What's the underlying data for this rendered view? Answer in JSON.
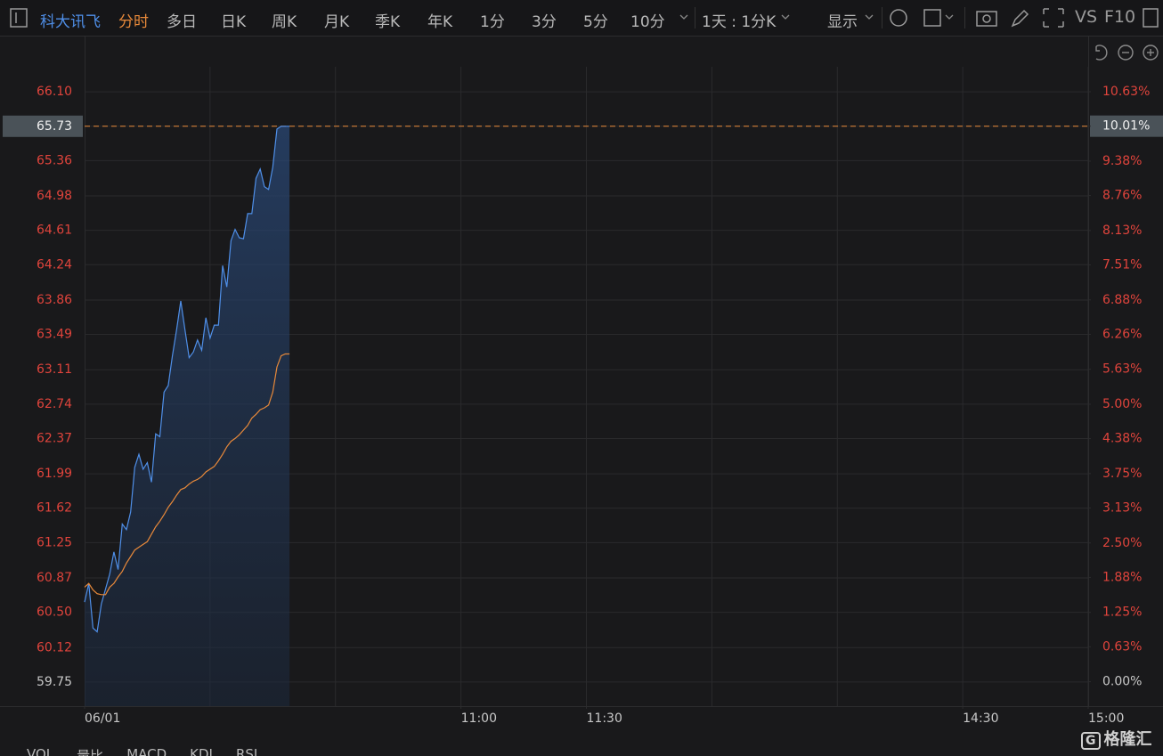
{
  "toolbar": {
    "stock": "科大讯飞",
    "items": [
      "分时",
      "多日",
      "日K",
      "周K",
      "月K",
      "季K",
      "年K",
      "1分",
      "3分",
      "5分",
      "10分"
    ],
    "period": "1天 : 1分K",
    "display": "显示",
    "vs": "VS",
    "f10": "F10"
  },
  "chart_data": {
    "type": "line",
    "x": [
      0,
      1,
      2,
      3,
      4,
      5,
      6,
      7,
      8,
      9,
      10,
      11,
      12,
      13,
      14,
      15,
      16,
      17,
      18,
      19,
      20,
      21,
      22,
      23,
      24,
      25,
      26,
      27,
      28,
      29,
      30,
      31,
      32,
      33,
      34,
      35,
      36,
      37,
      38,
      39,
      40,
      41,
      42,
      43,
      44,
      45,
      46,
      47,
      48,
      49
    ],
    "series": [
      {
        "name": "price",
        "color": "#4f8fe8",
        "area": true,
        "values": [
          60.61,
          60.81,
          60.33,
          60.29,
          60.59,
          60.75,
          60.91,
          61.15,
          60.96,
          61.45,
          61.39,
          61.58,
          62.06,
          62.2,
          62.04,
          62.11,
          61.9,
          62.42,
          62.39,
          62.87,
          62.94,
          63.26,
          63.54,
          63.85,
          63.54,
          63.24,
          63.3,
          63.43,
          63.32,
          63.67,
          63.45,
          63.59,
          63.59,
          64.23,
          64.0,
          64.5,
          64.62,
          64.53,
          64.52,
          64.79,
          64.79,
          65.17,
          65.27,
          65.08,
          65.05,
          65.29,
          65.7,
          65.73,
          65.73,
          65.73
        ]
      },
      {
        "name": "average",
        "color": "#e8893a",
        "values": [
          60.77,
          60.81,
          60.74,
          60.7,
          60.69,
          60.69,
          60.77,
          60.81,
          60.88,
          60.94,
          61.03,
          61.1,
          61.17,
          61.2,
          61.23,
          61.26,
          61.34,
          61.42,
          61.48,
          61.55,
          61.63,
          61.69,
          61.76,
          61.82,
          61.84,
          61.88,
          61.91,
          61.93,
          61.96,
          62.01,
          62.04,
          62.07,
          62.13,
          62.2,
          62.28,
          62.34,
          62.37,
          62.41,
          62.46,
          62.51,
          62.59,
          62.63,
          62.68,
          62.7,
          62.73,
          62.87,
          63.14,
          63.26,
          63.28,
          63.28
        ]
      }
    ],
    "xlim": [
      0,
      240
    ],
    "xticks": [
      {
        "value": 0,
        "label": "06/01"
      },
      {
        "value": 90,
        "label": "11:00"
      },
      {
        "value": 120,
        "label": "11:30"
      },
      {
        "value": 210,
        "label": "14:30"
      },
      {
        "value": 240,
        "label": "15:00"
      }
    ],
    "xgrid": [
      30,
      60,
      90,
      120,
      150,
      180,
      210,
      240
    ],
    "ylim": [
      59.49,
      66.37
    ],
    "yticks": [
      59.75,
      60.12,
      {
        "value": 60.5,
        "label": "60.50"
      },
      60.87,
      61.25,
      61.62,
      61.99,
      62.37,
      62.74,
      63.11,
      63.49,
      63.86,
      64.24,
      64.61,
      64.98,
      65.36,
      65.73,
      {
        "value": 66.1,
        "label": "66.10"
      }
    ],
    "y2lim": [
      -0.44,
      11.08
    ],
    "y2ticks": [
      {
        "value": 0,
        "label": "0.00%"
      },
      {
        "value": 0.63,
        "label": "0.63%"
      },
      {
        "value": 1.25,
        "label": "1.25%"
      },
      {
        "value": 1.88,
        "label": "1.88%"
      },
      {
        "value": 2.5,
        "label": "2.50%"
      },
      {
        "value": 3.13,
        "label": "3.13%"
      },
      {
        "value": 3.75,
        "label": "3.75%"
      },
      {
        "value": 4.38,
        "label": "4.38%"
      },
      {
        "value": 5.0,
        "label": "5.00%"
      },
      {
        "value": 5.63,
        "label": "5.63%"
      },
      {
        "value": 6.26,
        "label": "6.26%"
      },
      {
        "value": 6.88,
        "label": "6.88%"
      },
      {
        "value": 7.51,
        "label": "7.51%"
      },
      {
        "value": 8.13,
        "label": "8.13%"
      },
      {
        "value": 8.76,
        "label": "8.76%"
      },
      {
        "value": 9.38,
        "label": "9.38%"
      },
      {
        "value": 10.01,
        "label": "10.01%"
      },
      {
        "value": 10.63,
        "label": "10.63%"
      }
    ],
    "reference_line": 65.73,
    "grid": true
  },
  "bottom_tabs": [
    "VOL",
    "量比",
    "MACD",
    "KDJ",
    "RSI"
  ],
  "watermark": "格隆汇"
}
